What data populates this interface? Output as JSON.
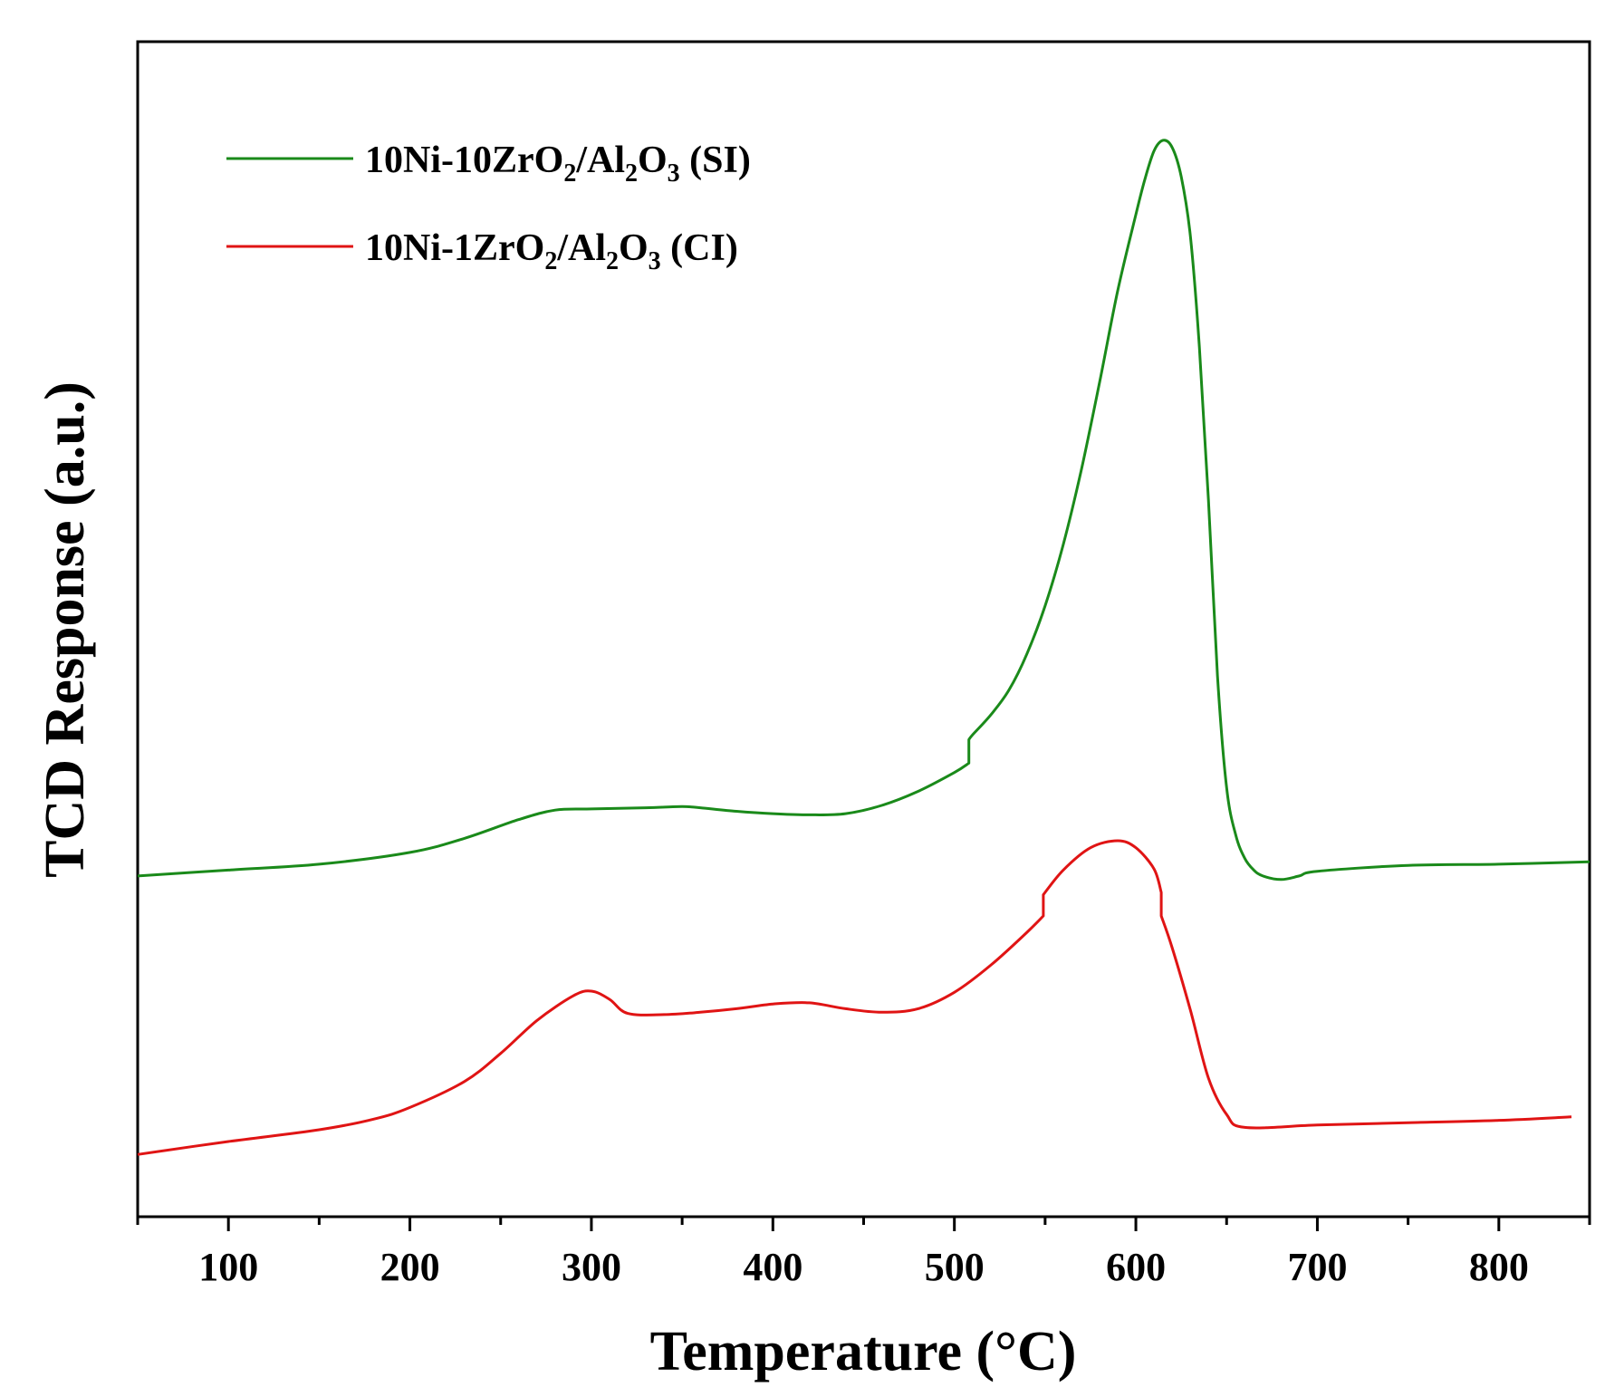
{
  "chart_data": {
    "type": "line",
    "xlabel": "Temperature (°C)",
    "ylabel": "TCD Response (a.u.)",
    "xlim": [
      50,
      850
    ],
    "ylim": [
      0,
      100
    ],
    "x_ticks": [
      100,
      200,
      300,
      400,
      500,
      600,
      700,
      800
    ],
    "y_ticks": [],
    "grid": false,
    "legend_position": "top-left",
    "series": [
      {
        "name": "10Ni-10ZrO2/Al2O3 (SI)",
        "legend_parts": [
          {
            "text": "10Ni-10ZrO",
            "sub": false
          },
          {
            "text": "2",
            "sub": true
          },
          {
            "text": "/Al",
            "sub": false
          },
          {
            "text": "2",
            "sub": true
          },
          {
            "text": "O",
            "sub": false
          },
          {
            "text": "3",
            "sub": true
          },
          {
            "text": " (SI)",
            "sub": false
          }
        ],
        "color": "#1a8a1a",
        "x": [
          50,
          100,
          150,
          200,
          230,
          260,
          280,
          300,
          330,
          350,
          360,
          380,
          400,
          420,
          440,
          460,
          480,
          500,
          508,
          508,
          510,
          520,
          530,
          540,
          550,
          560,
          570,
          580,
          590,
          600,
          605,
          610,
          615,
          620,
          625,
          630,
          635,
          640,
          645,
          650,
          655,
          660,
          665,
          670,
          680,
          690,
          700,
          750,
          800,
          850
        ],
        "y": [
          29.0,
          29.5,
          30.0,
          31.0,
          32.2,
          33.8,
          34.6,
          34.7,
          34.8,
          34.9,
          34.8,
          34.5,
          34.3,
          34.2,
          34.3,
          35.0,
          36.2,
          37.8,
          38.6,
          40.6,
          41.0,
          42.7,
          44.8,
          47.9,
          52.0,
          57.2,
          63.6,
          71.0,
          78.8,
          85.3,
          88.3,
          90.7,
          91.6,
          91.0,
          88.5,
          83.5,
          74.0,
          61.0,
          46.0,
          36.5,
          32.5,
          30.5,
          29.5,
          29.0,
          28.7,
          29.0,
          29.4,
          29.9,
          30.0,
          30.2
        ],
        "smooth": true
      },
      {
        "name": "10Ni-1ZrO2/Al2O3 (CI)",
        "legend_parts": [
          {
            "text": "10Ni-1ZrO",
            "sub": false
          },
          {
            "text": "2",
            "sub": true
          },
          {
            "text": "/Al",
            "sub": false
          },
          {
            "text": "2",
            "sub": true
          },
          {
            "text": "O",
            "sub": false
          },
          {
            "text": "3",
            "sub": true
          },
          {
            "text": " (CI)",
            "sub": false
          }
        ],
        "color": "#e01414",
        "x": [
          50,
          100,
          150,
          180,
          200,
          230,
          250,
          270,
          290,
          300,
          310,
          320,
          340,
          360,
          380,
          400,
          420,
          440,
          460,
          480,
          500,
          520,
          540,
          549,
          549,
          560,
          575,
          590,
          600,
          610,
          614,
          614,
          620,
          630,
          640,
          650,
          660,
          700,
          750,
          800,
          840
        ],
        "y": [
          5.3,
          6.4,
          7.4,
          8.3,
          9.3,
          11.5,
          13.9,
          16.7,
          18.8,
          19.2,
          18.5,
          17.3,
          17.2,
          17.4,
          17.7,
          18.1,
          18.2,
          17.7,
          17.4,
          17.7,
          19.1,
          21.4,
          24.2,
          25.6,
          27.4,
          29.5,
          31.4,
          32.0,
          31.4,
          29.6,
          27.6,
          25.6,
          22.9,
          17.6,
          11.8,
          8.7,
          7.6,
          7.8,
          8.0,
          8.2,
          8.5
        ],
        "smooth": true
      }
    ]
  }
}
